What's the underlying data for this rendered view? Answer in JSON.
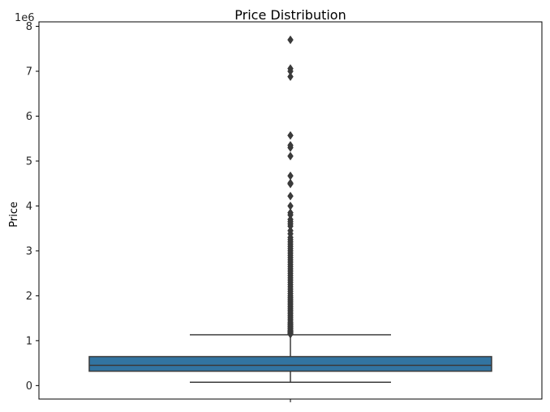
{
  "chart_data": {
    "type": "box",
    "title": "Price Distribution",
    "xlabel": "",
    "ylabel": "Price",
    "y_offset_text": "1e6",
    "y_scale": 1000000,
    "ylim": [
      -0.3,
      8.1
    ],
    "y_ticks": [
      0,
      1,
      2,
      3,
      4,
      5,
      6,
      7,
      8
    ],
    "y_tick_labels": [
      "0",
      "1",
      "2",
      "3",
      "4",
      "5",
      "6",
      "7",
      "8"
    ],
    "grid": false,
    "box_color": "#3274a1",
    "line_color": "#3a3a3a",
    "box": {
      "whisker_low": 0.075,
      "q1": 0.32,
      "median": 0.45,
      "q3": 0.645,
      "whisker_high": 1.13
    },
    "outliers": [
      7.7,
      7.06,
      7.0,
      6.88,
      5.57,
      5.35,
      5.3,
      5.11,
      4.67,
      4.51,
      4.49,
      4.22,
      4.0,
      3.85,
      3.8,
      3.7,
      3.65,
      3.6,
      3.55,
      3.45,
      3.38,
      3.3,
      3.25,
      3.2,
      3.15,
      3.1,
      3.05,
      3.0,
      2.95,
      2.9,
      2.85,
      2.8,
      2.75,
      2.7,
      2.65,
      2.6,
      2.55,
      2.5,
      2.45,
      2.4,
      2.35,
      2.3,
      2.25,
      2.2,
      2.15,
      2.1,
      2.05,
      2.0,
      1.96,
      1.92,
      1.88,
      1.84,
      1.8,
      1.76,
      1.72,
      1.68,
      1.64,
      1.6,
      1.56,
      1.52,
      1.48,
      1.44,
      1.4,
      1.37,
      1.34,
      1.31,
      1.28,
      1.25,
      1.22,
      1.2,
      1.18,
      1.16,
      1.145
    ]
  }
}
